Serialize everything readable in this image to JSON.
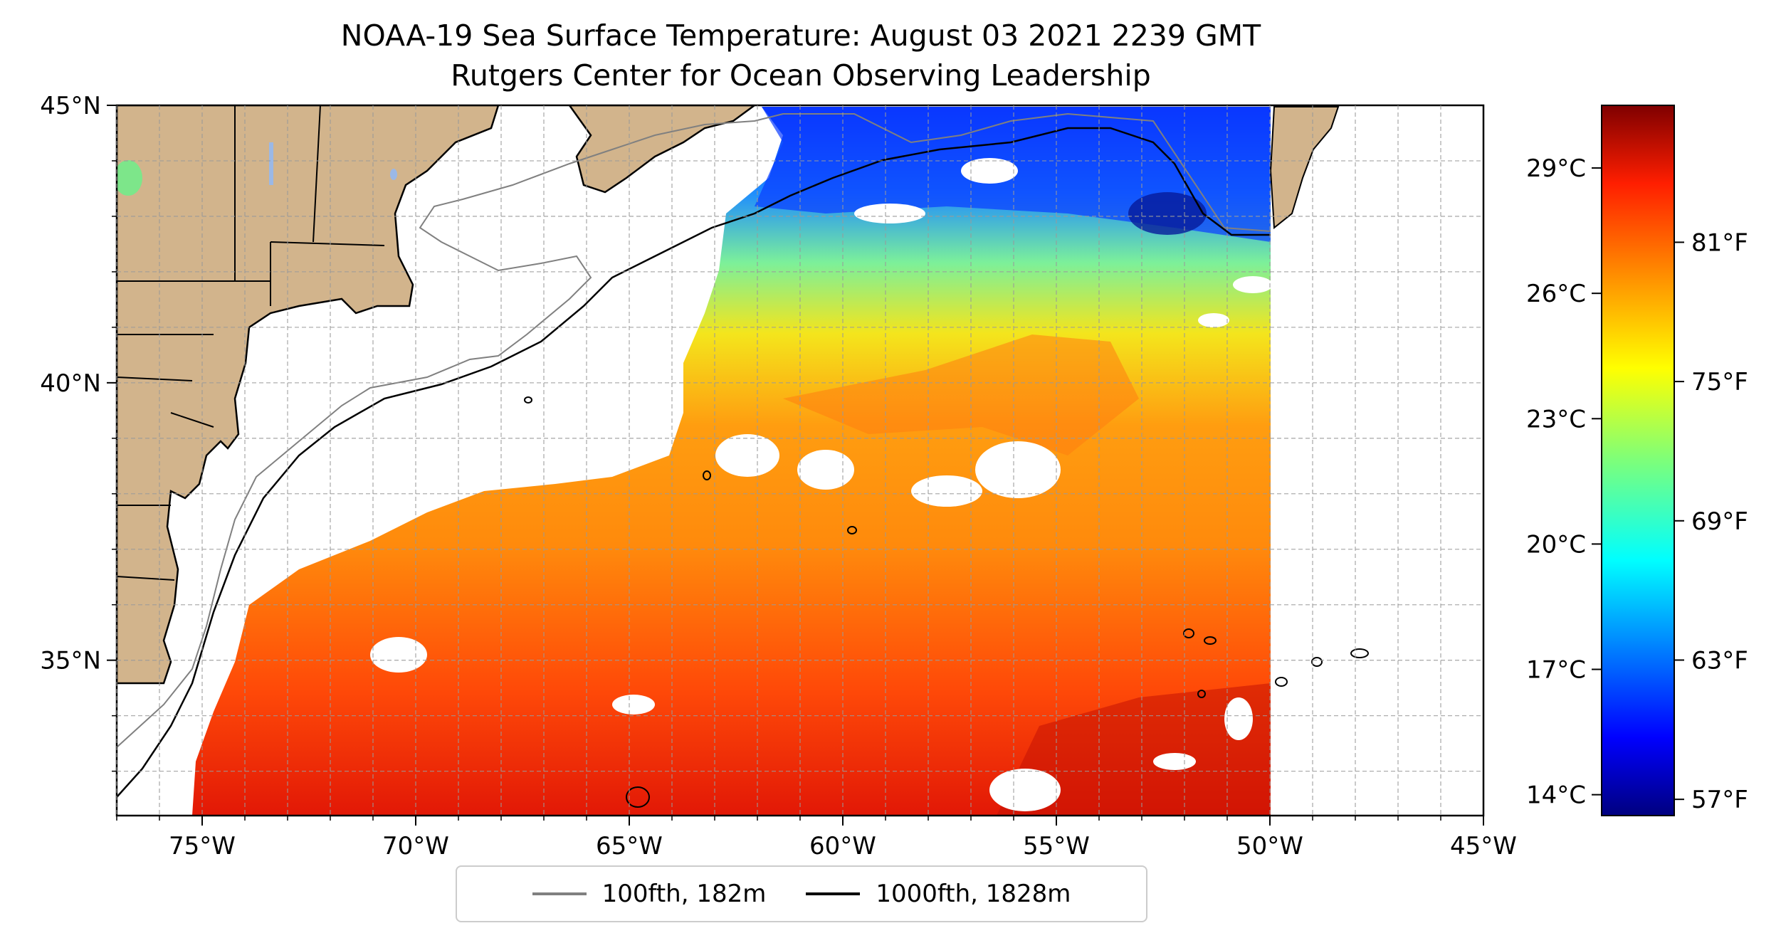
{
  "title": {
    "line1": "NOAA-19 Sea Surface Temperature: August 03 2021 2239 GMT",
    "line2": "Rutgers Center for Ocean Observing Leadership"
  },
  "map": {
    "lon_range": [
      -77,
      -45
    ],
    "lat_range": [
      32.2,
      45
    ],
    "x_ticks": [
      "75°W",
      "70°W",
      "65°W",
      "60°W",
      "55°W",
      "50°W",
      "45°W"
    ],
    "x_tick_values": [
      -75,
      -70,
      -65,
      -60,
      -55,
      -50,
      -45
    ],
    "y_ticks": [
      "35°N",
      "40°N",
      "45°N"
    ],
    "y_tick_values": [
      35,
      40,
      45
    ],
    "gridlines": true,
    "land_color": "#d2b48c",
    "ocean_data_color_scale": "jet"
  },
  "colorbar": {
    "celsius_labels": [
      "29°C",
      "26°C",
      "23°C",
      "20°C",
      "17°C",
      "14°C"
    ],
    "celsius_values": [
      29,
      26,
      23,
      20,
      17,
      14
    ],
    "fahrenheit_labels": [
      "81°F",
      "75°F",
      "69°F",
      "63°F",
      "57°F"
    ],
    "fahrenheit_values": [
      81,
      75,
      69,
      63,
      57
    ],
    "range_c": [
      13.5,
      30.5
    ]
  },
  "legend": {
    "items": [
      {
        "label": "100fth, 182m",
        "color": "#808080"
      },
      {
        "label": "1000fth, 1828m",
        "color": "#000000"
      }
    ]
  }
}
